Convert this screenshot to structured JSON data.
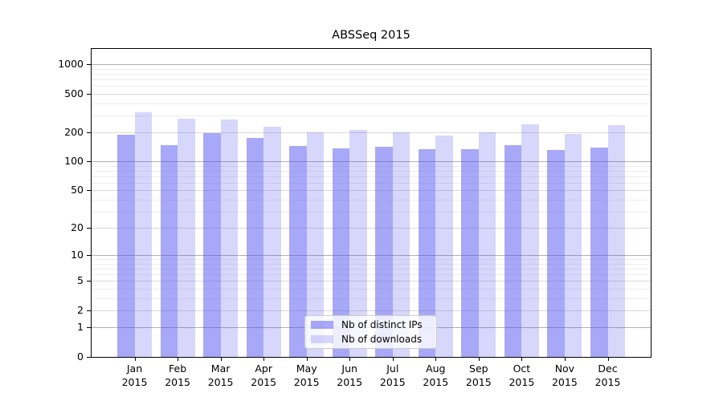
{
  "title": "ABSSeq 2015",
  "chart_data": {
    "type": "bar",
    "title": "ABSSeq 2015",
    "categories": [
      "Jan 2015",
      "Feb 2015",
      "Mar 2015",
      "Apr 2015",
      "May 2015",
      "Jun 2015",
      "Jul 2015",
      "Aug 2015",
      "Sep 2015",
      "Oct 2015",
      "Nov 2015",
      "Dec 2015"
    ],
    "series": [
      {
        "name": "Nb of distinct IPs",
        "color": "rgba(81,81,241,0.5)",
        "values": [
          190,
          148,
          197,
          174,
          146,
          136,
          141,
          133,
          135,
          149,
          131,
          140
        ]
      },
      {
        "name": "Nb of downloads",
        "color": "rgba(81,81,241,0.23)",
        "values": [
          322,
          274,
          269,
          228,
          201,
          210,
          200,
          185,
          201,
          243,
          191,
          238
        ]
      }
    ],
    "xlabel": "",
    "ylabel": "",
    "y_axis": {
      "scale": "log1p",
      "ticks": [
        0,
        1,
        2,
        5,
        10,
        20,
        50,
        100,
        200,
        500,
        1000
      ],
      "max": 1440,
      "decade_gridlines": [
        1,
        10,
        100,
        1000
      ],
      "sub_gridlines": [
        2,
        5,
        20,
        50,
        200,
        500
      ],
      "minor_gridlines": [
        3,
        4,
        6,
        7,
        8,
        9,
        30,
        40,
        60,
        70,
        80,
        90,
        300,
        400,
        600,
        700,
        800,
        900
      ]
    },
    "grid": true,
    "legend": {
      "position": "lower center",
      "entries": [
        "Nb of distinct IPs",
        "Nb of downloads"
      ]
    },
    "colors": {
      "grid_decade": "#b0b0b0",
      "grid_sub": "#d9d9d9",
      "grid_minor": "#ededed",
      "frame": "#000000",
      "background": "#ffffff"
    }
  }
}
